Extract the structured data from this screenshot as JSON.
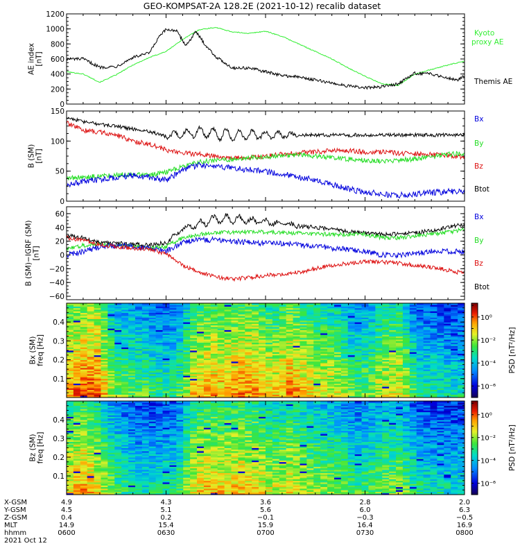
{
  "title": "GEO-KOMPSAT-2A 128.2E (2021-10-12) recalib dataset",
  "colors": {
    "black": "#000000",
    "green": "#22dd22",
    "red": "#dd1111",
    "blue": "#0000dd",
    "kyoto": "#33ee33"
  },
  "chart_data": [
    {
      "type": "line",
      "ylabel": "AE index [nT]",
      "ylim": [
        0,
        1200
      ],
      "yticks": [
        0,
        200,
        400,
        600,
        800,
        1000,
        1200
      ],
      "xlim": [
        0,
        120
      ],
      "x_unit": "minutes after 0600 UT",
      "grid": false,
      "legend": "right",
      "series": [
        {
          "name": "Kyoto proxy AE",
          "color": "#33ee33",
          "noise": 6,
          "x": [
            0,
            5,
            10,
            15,
            20,
            25,
            30,
            35,
            40,
            45,
            50,
            55,
            60,
            65,
            70,
            75,
            80,
            85,
            90,
            95,
            100,
            105,
            110,
            115,
            120
          ],
          "y": [
            430,
            400,
            290,
            390,
            520,
            620,
            700,
            860,
            990,
            1020,
            960,
            940,
            970,
            900,
            800,
            700,
            600,
            480,
            370,
            270,
            250,
            400,
            460,
            520,
            570
          ]
        },
        {
          "name": "Themis AE",
          "color": "#000000",
          "noise": 20,
          "x": [
            0,
            5,
            10,
            15,
            20,
            25,
            28,
            30,
            33,
            36,
            39,
            42,
            45,
            50,
            55,
            60,
            65,
            70,
            75,
            80,
            85,
            90,
            95,
            100,
            105,
            110,
            115,
            118,
            120
          ],
          "y": [
            600,
            600,
            490,
            500,
            620,
            680,
            900,
            990,
            980,
            780,
            960,
            780,
            630,
            480,
            480,
            430,
            380,
            360,
            320,
            280,
            240,
            215,
            230,
            270,
            410,
            400,
            350,
            320,
            380
          ]
        }
      ]
    },
    {
      "type": "line",
      "ylabel": "B (SM) [nT]",
      "ylim": [
        0,
        150
      ],
      "yticks": [
        0,
        50,
        100,
        150
      ],
      "xlim": [
        0,
        120
      ],
      "grid": false,
      "legend": "right",
      "legend_entries": [
        {
          "name": "Bx",
          "color": "#0000dd"
        },
        {
          "name": "By",
          "color": "#22dd22"
        },
        {
          "name": "Bz",
          "color": "#dd1111"
        },
        {
          "name": "Btot",
          "color": "#000000"
        }
      ],
      "series": [
        {
          "name": "Btot",
          "color": "#000000",
          "noise": 3,
          "osc": 10,
          "x": [
            0,
            5,
            10,
            15,
            20,
            25,
            30,
            35,
            40,
            45,
            50,
            55,
            60,
            65,
            70,
            75,
            80,
            85,
            90,
            95,
            100,
            105,
            110,
            115,
            120
          ],
          "y": [
            140,
            132,
            128,
            125,
            120,
            116,
            108,
            112,
            115,
            112,
            110,
            110,
            110,
            110,
            110,
            110,
            110,
            110,
            110,
            110,
            110,
            110,
            110,
            110,
            110
          ]
        },
        {
          "name": "Bz",
          "color": "#dd1111",
          "noise": 4,
          "x": [
            0,
            5,
            10,
            15,
            20,
            25,
            30,
            35,
            40,
            45,
            50,
            55,
            60,
            65,
            70,
            75,
            80,
            85,
            90,
            95,
            100,
            105,
            110,
            115,
            120
          ],
          "y": [
            130,
            118,
            115,
            110,
            100,
            95,
            85,
            80,
            78,
            75,
            72,
            72,
            75,
            78,
            80,
            82,
            84,
            84,
            82,
            82,
            80,
            79,
            78,
            76,
            73
          ]
        },
        {
          "name": "By",
          "color": "#22dd22",
          "noise": 4,
          "x": [
            0,
            5,
            10,
            15,
            20,
            25,
            30,
            35,
            40,
            45,
            50,
            55,
            60,
            65,
            70,
            75,
            80,
            85,
            90,
            95,
            100,
            105,
            110,
            115,
            120
          ],
          "y": [
            38,
            40,
            42,
            44,
            45,
            43,
            48,
            58,
            65,
            68,
            70,
            72,
            74,
            75,
            77,
            75,
            72,
            70,
            68,
            66,
            68,
            70,
            74,
            78,
            80
          ]
        },
        {
          "name": "Bx",
          "color": "#0000dd",
          "noise": 5,
          "x": [
            0,
            5,
            10,
            15,
            20,
            25,
            30,
            35,
            40,
            45,
            50,
            55,
            60,
            65,
            70,
            75,
            80,
            85,
            90,
            95,
            100,
            105,
            110,
            115,
            120
          ],
          "y": [
            28,
            32,
            36,
            40,
            43,
            40,
            35,
            52,
            60,
            57,
            55,
            52,
            50,
            45,
            40,
            35,
            28,
            20,
            15,
            12,
            10,
            12,
            14,
            16,
            15
          ]
        }
      ]
    },
    {
      "type": "line",
      "ylabel": "B (SM)-IGRF (SM) [nT]",
      "ylim": [
        -65,
        70
      ],
      "yticks": [
        -60,
        -40,
        -20,
        0,
        20,
        40,
        60
      ],
      "xlim": [
        0,
        120
      ],
      "grid": false,
      "legend": "right",
      "legend_entries": [
        {
          "name": "Bx",
          "color": "#0000dd"
        },
        {
          "name": "By",
          "color": "#22dd22"
        },
        {
          "name": "Bz",
          "color": "#dd1111"
        },
        {
          "name": "Btot",
          "color": "#000000"
        }
      ],
      "series": [
        {
          "name": "Btot",
          "color": "#000000",
          "noise": 3,
          "osc": 6,
          "x": [
            0,
            5,
            10,
            15,
            20,
            25,
            30,
            35,
            40,
            45,
            50,
            55,
            60,
            65,
            70,
            75,
            80,
            85,
            90,
            95,
            100,
            105,
            110,
            115,
            120
          ],
          "y": [
            28,
            25,
            18,
            17,
            16,
            14,
            18,
            38,
            45,
            52,
            52,
            50,
            48,
            45,
            42,
            40,
            37,
            34,
            32,
            30,
            30,
            32,
            35,
            40,
            45
          ]
        },
        {
          "name": "By",
          "color": "#22dd22",
          "noise": 3,
          "x": [
            0,
            5,
            10,
            15,
            20,
            25,
            30,
            35,
            40,
            45,
            50,
            55,
            60,
            65,
            70,
            75,
            80,
            85,
            90,
            95,
            100,
            105,
            110,
            115,
            120
          ],
          "y": [
            8,
            14,
            15,
            14,
            12,
            10,
            12,
            25,
            30,
            32,
            33,
            34,
            33,
            32,
            32,
            30,
            30,
            30,
            30,
            25,
            25,
            28,
            30,
            33,
            37
          ]
        },
        {
          "name": "Bx",
          "color": "#0000dd",
          "noise": 4,
          "x": [
            0,
            5,
            10,
            15,
            20,
            25,
            30,
            35,
            40,
            45,
            50,
            55,
            60,
            65,
            70,
            75,
            80,
            85,
            90,
            95,
            100,
            105,
            110,
            115,
            120
          ],
          "y": [
            0,
            5,
            12,
            14,
            12,
            10,
            5,
            18,
            22,
            22,
            20,
            18,
            17,
            17,
            15,
            12,
            10,
            8,
            5,
            0,
            0,
            2,
            5,
            5,
            5
          ]
        },
        {
          "name": "Bz",
          "color": "#dd1111",
          "noise": 3,
          "x": [
            0,
            5,
            10,
            15,
            20,
            25,
            30,
            35,
            40,
            45,
            50,
            55,
            60,
            65,
            70,
            75,
            80,
            85,
            90,
            95,
            100,
            105,
            110,
            115,
            120
          ],
          "y": [
            25,
            22,
            15,
            12,
            10,
            8,
            2,
            -15,
            -25,
            -32,
            -35,
            -33,
            -30,
            -28,
            -25,
            -20,
            -15,
            -12,
            -10,
            -10,
            -12,
            -15,
            -18,
            -22,
            -27
          ]
        }
      ]
    },
    {
      "type": "heatmap",
      "ylabel": "Bx (SM) freq [Hz]",
      "ylim": [
        0,
        0.5
      ],
      "yticks": [
        0.1,
        0.2,
        0.3,
        0.4
      ],
      "xlim": [
        0,
        120
      ],
      "colorbar_label": "PSD [nT²/Hz]",
      "colorbar_ticks": [
        "10⁰",
        "10⁻²",
        "10⁻⁴",
        "10⁻⁶"
      ],
      "colorbar_range": [
        -7,
        1.2
      ],
      "intensity_profile": [
        0.8,
        0.86,
        0.86,
        0.6,
        0.58,
        0.55,
        0.5,
        0.52,
        0.75,
        0.8,
        0.78,
        0.82,
        0.8,
        0.72,
        0.82,
        0.75,
        0.7,
        0.68,
        0.55,
        0.6,
        0.7,
        0.72,
        0.5,
        0.48,
        0.45,
        0.45
      ],
      "seed": 7
    },
    {
      "type": "heatmap",
      "ylabel": "Bz (SM) freq [Hz]",
      "ylim": [
        0,
        0.5
      ],
      "yticks": [
        0.1,
        0.2,
        0.3,
        0.4
      ],
      "xlim": [
        0,
        120
      ],
      "colorbar_label": "PSD [nT²/Hz]",
      "colorbar_ticks": [
        "10⁰",
        "10⁻²",
        "10⁻⁴",
        "10⁻⁶"
      ],
      "colorbar_range": [
        -7,
        1.2
      ],
      "intensity_profile": [
        0.72,
        0.8,
        0.72,
        0.55,
        0.48,
        0.45,
        0.48,
        0.5,
        0.72,
        0.76,
        0.74,
        0.76,
        0.74,
        0.66,
        0.72,
        0.66,
        0.62,
        0.6,
        0.52,
        0.55,
        0.6,
        0.62,
        0.48,
        0.45,
        0.44,
        0.44
      ],
      "seed": 19
    }
  ],
  "ephemeris": {
    "labels": [
      "X-GSM",
      "Y-GSM",
      "Z-GSM",
      "MLT",
      "hhmm"
    ],
    "date": "2021 Oct 12",
    "columns": [
      {
        "x": 0,
        "values": [
          "4.9",
          "4.5",
          "0.4",
          "14.9",
          "0600"
        ]
      },
      {
        "x": 30,
        "values": [
          "4.3",
          "5.1",
          "0.2",
          "15.4",
          "0630"
        ]
      },
      {
        "x": 60,
        "values": [
          "3.6",
          "5.6",
          "−0.1",
          "15.9",
          "0700"
        ]
      },
      {
        "x": 90,
        "values": [
          "2.8",
          "6.0",
          "−0.3",
          "16.4",
          "0730"
        ]
      },
      {
        "x": 120,
        "values": [
          "2.0",
          "6.3",
          "−0.5",
          "16.9",
          "0800"
        ]
      }
    ]
  }
}
